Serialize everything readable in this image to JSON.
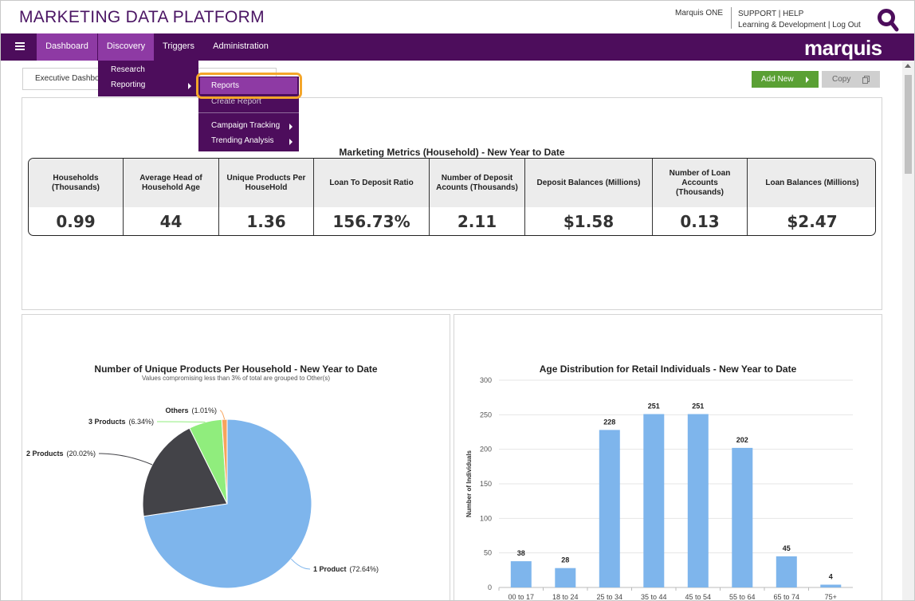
{
  "header": {
    "app_title": "MARKETING DATA PLATFORM",
    "org": "Marquis ONE",
    "support": "SUPPORT",
    "help": "HELP",
    "learning": "Learning & Development",
    "logout": "Log Out",
    "brand": "marquis"
  },
  "nav": {
    "dashboard": "Dashboard",
    "discovery": "Discovery",
    "triggers": "Triggers",
    "administration": "Administration"
  },
  "discovery_menu": {
    "research": "Research",
    "reporting": "Reporting"
  },
  "reporting_menu": {
    "reports": "Reports",
    "create_report": "Create Report",
    "campaign_tracking": "Campaign Tracking",
    "trending_analysis": "Trending Analysis"
  },
  "tab": {
    "label": "Executive Dashboard"
  },
  "actions": {
    "add_new": "Add New",
    "copy": "Copy"
  },
  "colors": {
    "brand_purple": "#4d0d5c",
    "active_purple": "#8e3aa4",
    "highlight": "#f4a62a",
    "add_green": "#5aa034",
    "bar_blue": "#7eb5ec"
  },
  "metrics": {
    "title": "Marketing Metrics (Household) - New Year to Date",
    "columns": [
      {
        "label": "Households (Thousands)",
        "value": "0.99"
      },
      {
        "label": "Average Head of Household Age",
        "value": "44"
      },
      {
        "label": "Unique Products Per HouseHold",
        "value": "1.36"
      },
      {
        "label": "Loan To Deposit Ratio",
        "value": "156.73%"
      },
      {
        "label": "Number of Deposit Acounts (Thousands)",
        "value": "2.11"
      },
      {
        "label": "Deposit Balances (Millions)",
        "value": "$1.58"
      },
      {
        "label": "Number of Loan Accounts (Thousands)",
        "value": "0.13"
      },
      {
        "label": "Loan Balances (Millions)",
        "value": "$2.47"
      }
    ]
  },
  "chart_data": [
    {
      "type": "pie",
      "title": "Number of Unique Products Per Household - New Year to Date",
      "subtitle": "Values compromising less than 3% of total are grouped to Other(s)",
      "slices": [
        {
          "label": "1 Product",
          "pct_label": "(72.64%)",
          "value": 72.64,
          "color": "#7eb5ec"
        },
        {
          "label": "2 Products",
          "pct_label": "(20.02%)",
          "value": 20.02,
          "color": "#434348"
        },
        {
          "label": "3 Products",
          "pct_label": "(6.34%)",
          "value": 6.34,
          "color": "#90ed7d"
        },
        {
          "label": "Others",
          "pct_label": "(1.01%)",
          "value": 1.01,
          "color": "#f7a35c"
        }
      ]
    },
    {
      "type": "bar",
      "title": "Age Distribution for Retail Individuals - New Year to Date",
      "ylabel": "Number of Individuals",
      "categories": [
        "00 to 17",
        "18 to 24",
        "25 to 34",
        "35 to 44",
        "45 to 54",
        "55 to 64",
        "65 to 74",
        "75+"
      ],
      "values": [
        38,
        28,
        228,
        251,
        251,
        202,
        45,
        4
      ],
      "yticks": [
        0,
        50,
        100,
        150,
        200,
        250,
        300
      ],
      "ylim": [
        0,
        300
      ]
    }
  ]
}
